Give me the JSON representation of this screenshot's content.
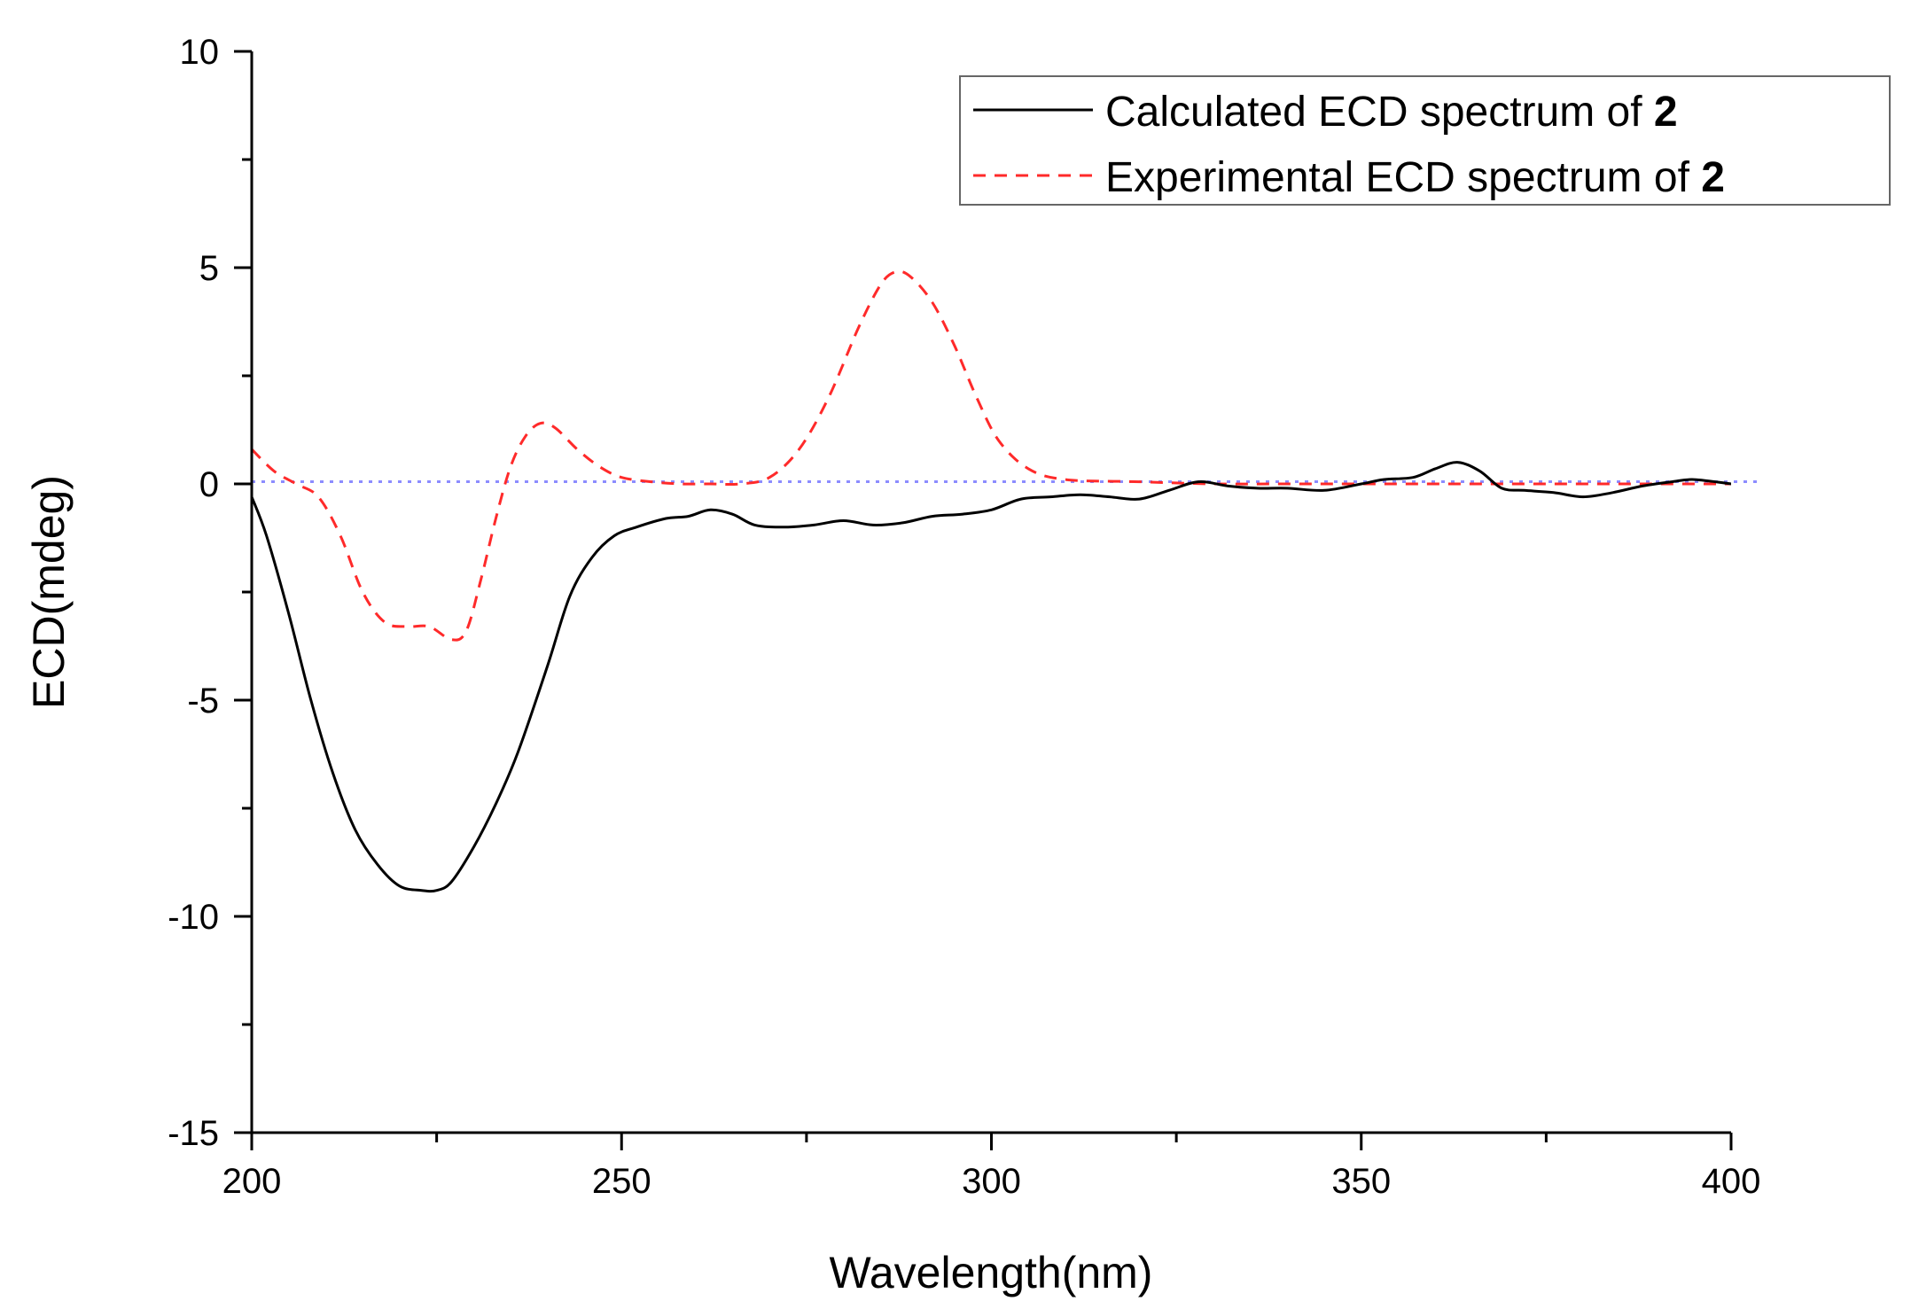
{
  "chart_data": {
    "type": "line",
    "title": "",
    "xlabel": "Wavelength(nm)",
    "ylabel": "ECD(mdeg)",
    "xlim": [
      200,
      400
    ],
    "ylim": [
      -15,
      10
    ],
    "x_ticks": [
      200,
      250,
      300,
      350,
      400
    ],
    "x_tick_labels": [
      "200",
      "250",
      "300",
      "350",
      "400"
    ],
    "y_ticks": [
      10,
      5,
      0,
      -5,
      -10,
      -15
    ],
    "y_tick_labels": [
      "10",
      "5",
      "0",
      "-5",
      "-10",
      "-15"
    ],
    "grid": false,
    "legend_position": "top-right",
    "legend": [
      {
        "text": "Calculated ECD spectrum of ",
        "bold": "2",
        "series": "calculated"
      },
      {
        "text": "Experimental ECD spectrum of ",
        "bold": "2",
        "series": "experimental"
      }
    ],
    "reference_line": {
      "y": 0.05,
      "color": "#8c8cff",
      "style": "dotted"
    },
    "series": [
      {
        "name": "Calculated ECD spectrum of 2",
        "id": "calculated",
        "color": "#000000",
        "style": "solid",
        "x": [
          200,
          202,
          205,
          208,
          211,
          214,
          217,
          220,
          223,
          225,
          227,
          230,
          233,
          236,
          240,
          243,
          246,
          249,
          252,
          256,
          259,
          262,
          265,
          268,
          272,
          276,
          280,
          284,
          288,
          292,
          296,
          300,
          304,
          308,
          312,
          316,
          320,
          324,
          328,
          332,
          336,
          340,
          345,
          350,
          353,
          357,
          360,
          363,
          366,
          369,
          372,
          376,
          380,
          384,
          388,
          392,
          395,
          400
        ],
        "y": [
          -0.3,
          -1.2,
          -3.0,
          -5.0,
          -6.7,
          -8.0,
          -8.8,
          -9.3,
          -9.4,
          -9.4,
          -9.2,
          -8.4,
          -7.4,
          -6.2,
          -4.2,
          -2.6,
          -1.7,
          -1.2,
          -1.0,
          -0.8,
          -0.75,
          -0.6,
          -0.7,
          -0.95,
          -1.0,
          -0.95,
          -0.85,
          -0.95,
          -0.9,
          -0.75,
          -0.7,
          -0.6,
          -0.35,
          -0.3,
          -0.25,
          -0.3,
          -0.35,
          -0.15,
          0.05,
          -0.05,
          -0.1,
          -0.1,
          -0.15,
          0.0,
          0.1,
          0.15,
          0.35,
          0.5,
          0.3,
          -0.1,
          -0.15,
          -0.2,
          -0.3,
          -0.2,
          -0.05,
          0.05,
          0.1,
          0.0
        ]
      },
      {
        "name": "Experimental ECD spectrum of 2",
        "id": "experimental",
        "color": "#ff2a2a",
        "style": "dashed",
        "x": [
          200,
          203,
          206,
          209,
          212,
          215,
          218,
          221,
          224,
          227,
          229,
          231,
          233,
          235,
          237,
          239,
          241,
          244,
          247,
          250,
          254,
          258,
          262,
          266,
          270,
          274,
          278,
          282,
          285,
          287,
          289,
          292,
          295,
          298,
          301,
          305,
          310,
          320,
          330,
          340,
          350,
          360,
          370,
          380,
          390,
          400
        ],
        "y": [
          0.8,
          0.3,
          0.0,
          -0.3,
          -1.2,
          -2.5,
          -3.2,
          -3.3,
          -3.3,
          -3.6,
          -3.4,
          -2.2,
          -0.8,
          0.4,
          1.1,
          1.4,
          1.3,
          0.8,
          0.4,
          0.15,
          0.05,
          0.0,
          0.0,
          0.0,
          0.15,
          0.8,
          2.0,
          3.6,
          4.6,
          4.9,
          4.8,
          4.2,
          3.2,
          2.0,
          1.0,
          0.35,
          0.1,
          0.05,
          0.0,
          0.0,
          0.0,
          0.0,
          0.0,
          0.0,
          0.0,
          0.0
        ]
      }
    ]
  }
}
